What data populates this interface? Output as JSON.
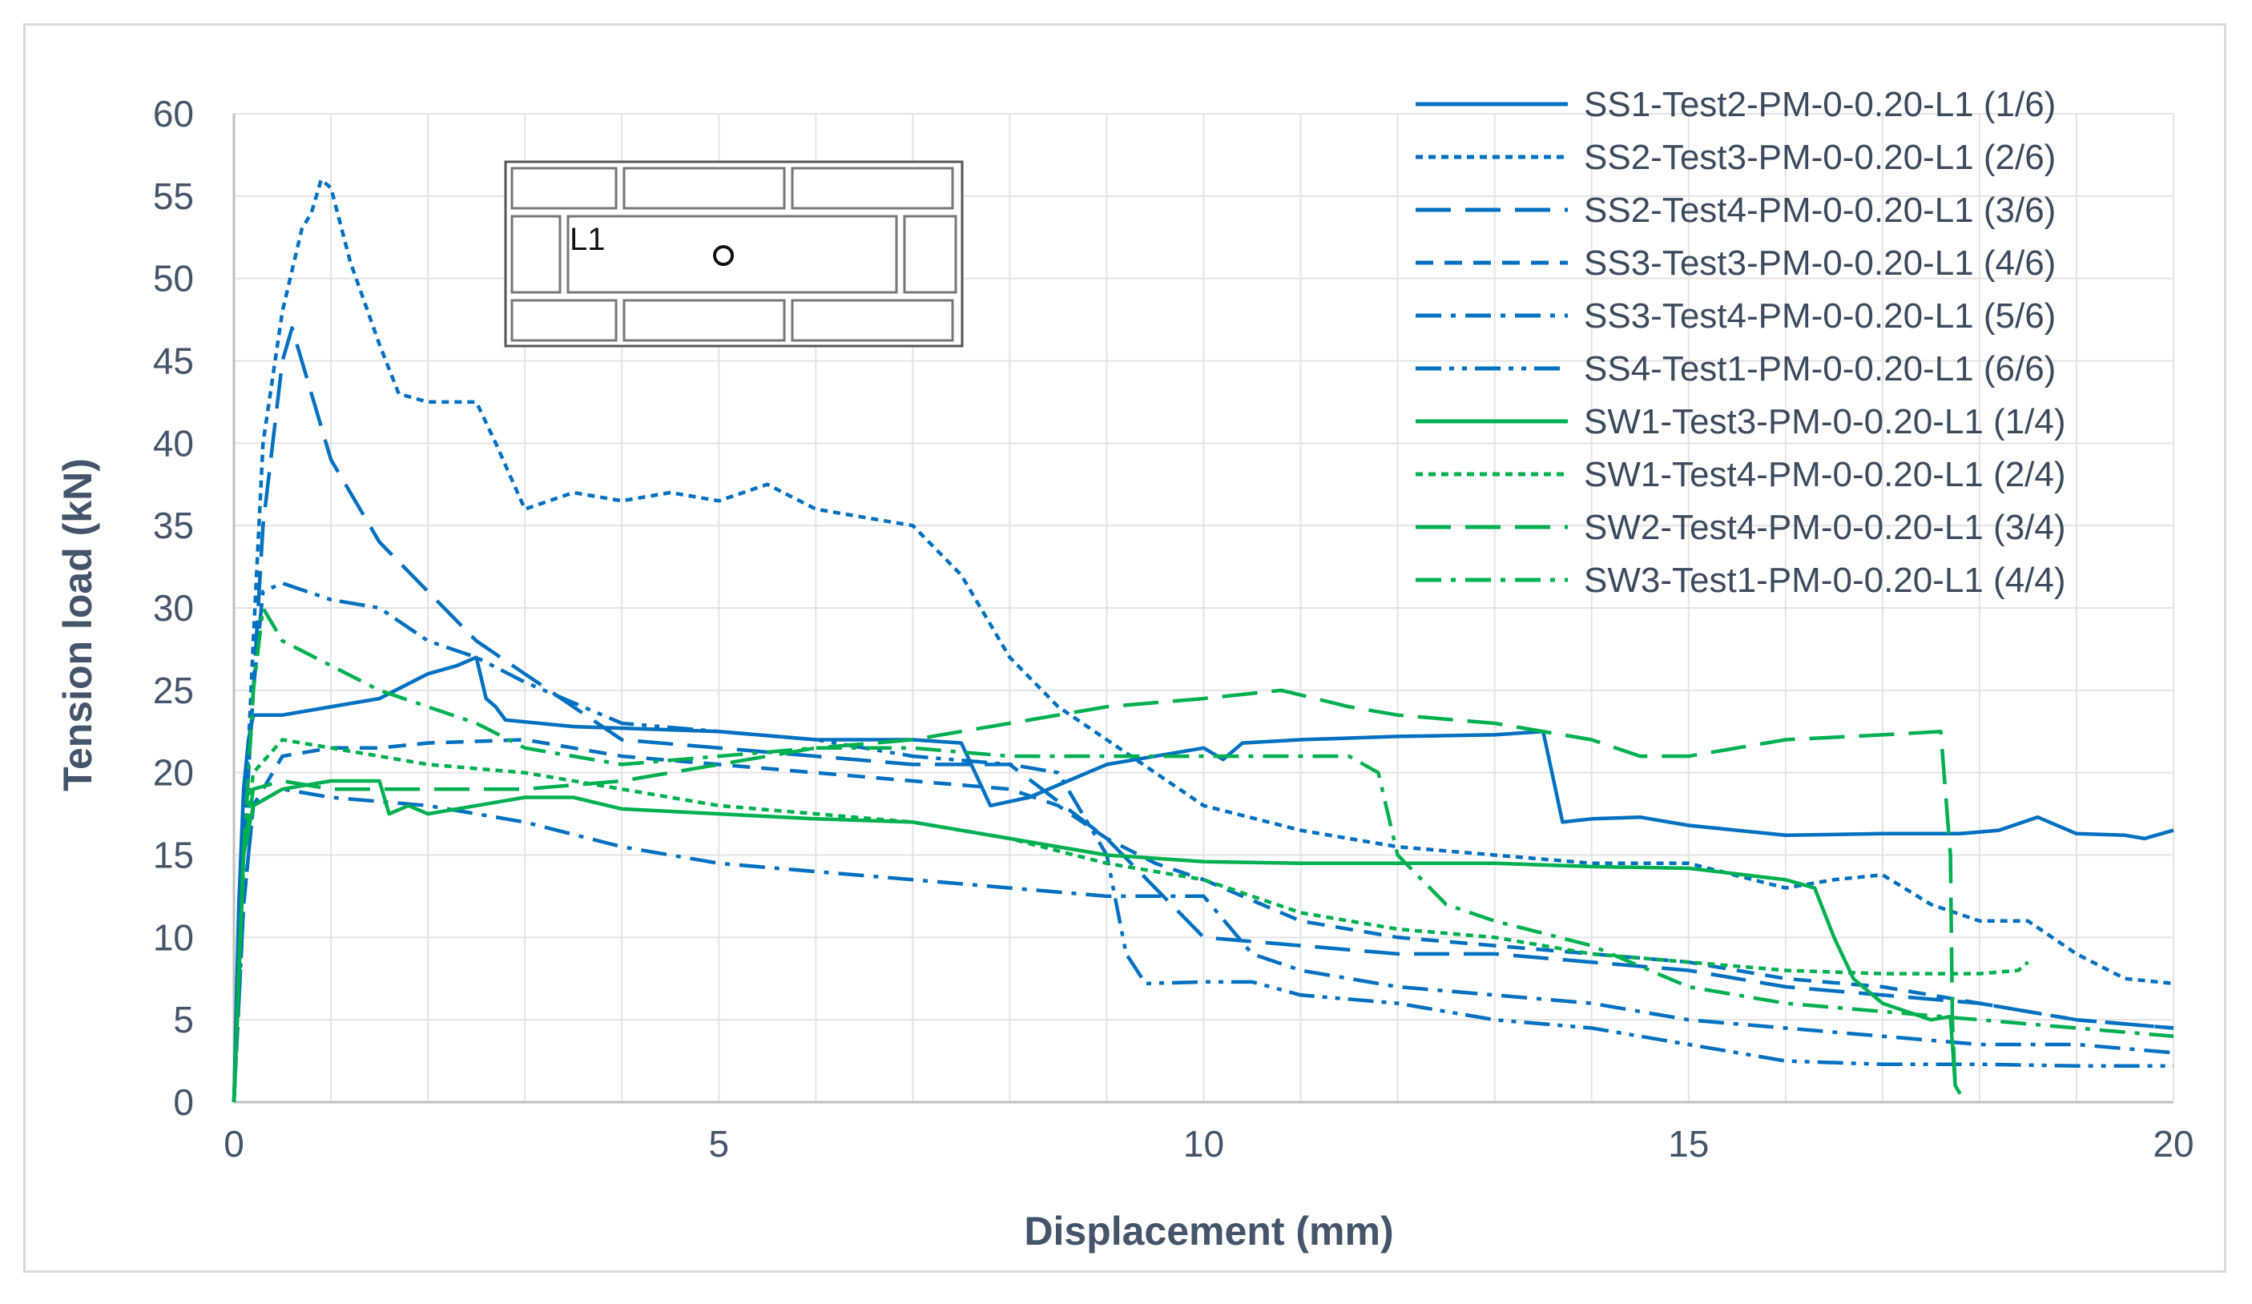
{
  "chart_data": {
    "type": "line",
    "title": "",
    "xlabel": "Displacement (mm)",
    "ylabel": "Tension load (kN)",
    "xlim": [
      0,
      20
    ],
    "ylim": [
      0,
      60
    ],
    "xticks": [
      0,
      5,
      10,
      15,
      20
    ],
    "yticks": [
      0,
      5,
      10,
      15,
      20,
      25,
      30,
      35,
      40,
      45,
      50,
      55,
      60
    ],
    "grid": true,
    "legend_position": "top-right",
    "inset": {
      "label": "L1"
    },
    "series": [
      {
        "name": "SS1-Test2-PM-0-0.20-L1 (1/6)",
        "color": "#0070c0",
        "dash": "solid",
        "points": [
          [
            0,
            0
          ],
          [
            0.05,
            12
          ],
          [
            0.1,
            19
          ],
          [
            0.15,
            22
          ],
          [
            0.2,
            23.5
          ],
          [
            0.5,
            23.5
          ],
          [
            1,
            24
          ],
          [
            1.5,
            24.5
          ],
          [
            2,
            26
          ],
          [
            2.3,
            26.5
          ],
          [
            2.5,
            27
          ],
          [
            2.6,
            24.5
          ],
          [
            2.7,
            24
          ],
          [
            2.8,
            23.2
          ],
          [
            3.5,
            22.8
          ],
          [
            5,
            22.5
          ],
          [
            6,
            22
          ],
          [
            7,
            22
          ],
          [
            7.5,
            21.8
          ],
          [
            7.8,
            18
          ],
          [
            8.2,
            18.5
          ],
          [
            9,
            20.5
          ],
          [
            10,
            21.5
          ],
          [
            10.2,
            20.8
          ],
          [
            10.4,
            21.8
          ],
          [
            11,
            22
          ],
          [
            12,
            22.2
          ],
          [
            13,
            22.3
          ],
          [
            13.5,
            22.5
          ],
          [
            13.7,
            17
          ],
          [
            14,
            17.2
          ],
          [
            14.5,
            17.3
          ],
          [
            15,
            16.8
          ],
          [
            16,
            16.2
          ],
          [
            17,
            16.3
          ],
          [
            17.8,
            16.3
          ],
          [
            18.2,
            16.5
          ],
          [
            18.6,
            17.3
          ],
          [
            19,
            16.3
          ],
          [
            19.5,
            16.2
          ],
          [
            19.7,
            16
          ],
          [
            20,
            16.5
          ]
        ]
      },
      {
        "name": "SS2-Test3-PM-0-0.20-L1 (2/6)",
        "color": "#0070c0",
        "dash": "dot",
        "points": [
          [
            0,
            0
          ],
          [
            0.1,
            15
          ],
          [
            0.2,
            28
          ],
          [
            0.3,
            40
          ],
          [
            0.5,
            48
          ],
          [
            0.7,
            53
          ],
          [
            0.8,
            54
          ],
          [
            0.9,
            56
          ],
          [
            1,
            55.5
          ],
          [
            1.2,
            51
          ],
          [
            1.5,
            46
          ],
          [
            1.7,
            43
          ],
          [
            2,
            42.5
          ],
          [
            2.5,
            42.5
          ],
          [
            2.7,
            40
          ],
          [
            3,
            36
          ],
          [
            3.5,
            37
          ],
          [
            4,
            36.5
          ],
          [
            4.5,
            37
          ],
          [
            5,
            36.5
          ],
          [
            5.5,
            37.5
          ],
          [
            6,
            36
          ],
          [
            7,
            35
          ],
          [
            7.5,
            32
          ],
          [
            8,
            27
          ],
          [
            8.5,
            24
          ],
          [
            9,
            22
          ],
          [
            9.5,
            20
          ],
          [
            10,
            18
          ],
          [
            11,
            16.5
          ],
          [
            12,
            15.5
          ],
          [
            13,
            15
          ],
          [
            14,
            14.5
          ],
          [
            15,
            14.5
          ],
          [
            16,
            13
          ],
          [
            16.5,
            13.5
          ],
          [
            17,
            13.8
          ],
          [
            17.5,
            12
          ],
          [
            18,
            11
          ],
          [
            18.5,
            11
          ],
          [
            19,
            9
          ],
          [
            19.5,
            7.5
          ],
          [
            20,
            7.2
          ]
        ]
      },
      {
        "name": "SS2-Test4-PM-0-0.20-L1 (3/6)",
        "color": "#0070c0",
        "dash": "long-dash",
        "points": [
          [
            0,
            0
          ],
          [
            0.1,
            15
          ],
          [
            0.3,
            35
          ],
          [
            0.5,
            45
          ],
          [
            0.6,
            47
          ],
          [
            0.8,
            43
          ],
          [
            1,
            39
          ],
          [
            1.5,
            34
          ],
          [
            2,
            31
          ],
          [
            2.5,
            28
          ],
          [
            3,
            26
          ],
          [
            3.5,
            24
          ],
          [
            4,
            22
          ],
          [
            5,
            21.5
          ],
          [
            6,
            21
          ],
          [
            7,
            20.5
          ],
          [
            8,
            20.5
          ],
          [
            9,
            16
          ],
          [
            10,
            10
          ],
          [
            11,
            9.5
          ],
          [
            12,
            9
          ],
          [
            13,
            9
          ],
          [
            14,
            8.5
          ],
          [
            15,
            8
          ],
          [
            16,
            7
          ],
          [
            17,
            6.5
          ],
          [
            18,
            6
          ],
          [
            19,
            5
          ],
          [
            20,
            4.5
          ]
        ]
      },
      {
        "name": "SS3-Test3-PM-0-0.20-L1 (4/6)",
        "color": "#0070c0",
        "dash": "dash",
        "points": [
          [
            0,
            0
          ],
          [
            0.1,
            12
          ],
          [
            0.2,
            18
          ],
          [
            0.5,
            21
          ],
          [
            1,
            21.5
          ],
          [
            1.5,
            21.5
          ],
          [
            2,
            21.8
          ],
          [
            3,
            22
          ],
          [
            4,
            21
          ],
          [
            5,
            20.5
          ],
          [
            6,
            20
          ],
          [
            7,
            19.5
          ],
          [
            8,
            19
          ],
          [
            8.5,
            18
          ],
          [
            9,
            16
          ],
          [
            9.5,
            14.5
          ],
          [
            10,
            13.5
          ],
          [
            11,
            11
          ],
          [
            12,
            10
          ],
          [
            13,
            9.5
          ],
          [
            14,
            9
          ],
          [
            15,
            8.5
          ],
          [
            16,
            7.5
          ],
          [
            17,
            7
          ],
          [
            18,
            6
          ],
          [
            19,
            5
          ],
          [
            20,
            4.5
          ]
        ]
      },
      {
        "name": "SS3-Test4-PM-0-0.20-L1 (5/6)",
        "color": "#0070c0",
        "dash": "dash-dot",
        "points": [
          [
            0,
            0
          ],
          [
            0.1,
            12
          ],
          [
            0.2,
            18
          ],
          [
            0.5,
            19
          ],
          [
            1,
            18.5
          ],
          [
            2,
            18
          ],
          [
            3,
            17
          ],
          [
            4,
            15.5
          ],
          [
            5,
            14.5
          ],
          [
            6,
            14
          ],
          [
            7,
            13.5
          ],
          [
            8,
            13
          ],
          [
            9,
            12.5
          ],
          [
            10,
            12.5
          ],
          [
            10.5,
            9
          ],
          [
            11,
            8
          ],
          [
            12,
            7
          ],
          [
            13,
            6.5
          ],
          [
            14,
            6
          ],
          [
            15,
            5
          ],
          [
            16,
            4.5
          ],
          [
            17,
            4
          ],
          [
            18,
            3.5
          ],
          [
            19,
            3.5
          ],
          [
            20,
            3
          ]
        ]
      },
      {
        "name": "SS4-Test1-PM-0-0.20-L1 (6/6)",
        "color": "#0070c0",
        "dash": "dash-dot-dot",
        "points": [
          [
            0,
            0
          ],
          [
            0.1,
            15
          ],
          [
            0.2,
            25
          ],
          [
            0.3,
            31
          ],
          [
            0.5,
            31.5
          ],
          [
            1,
            30.5
          ],
          [
            1.5,
            30
          ],
          [
            2,
            28
          ],
          [
            2.5,
            27
          ],
          [
            3,
            25.5
          ],
          [
            4,
            23
          ],
          [
            5,
            22.5
          ],
          [
            6,
            22
          ],
          [
            7,
            21
          ],
          [
            8,
            20.5
          ],
          [
            8.5,
            20
          ],
          [
            9,
            15
          ],
          [
            9.2,
            9
          ],
          [
            9.4,
            7.2
          ],
          [
            10,
            7.3
          ],
          [
            10.5,
            7.3
          ],
          [
            11,
            6.5
          ],
          [
            12,
            6
          ],
          [
            13,
            5
          ],
          [
            14,
            4.5
          ],
          [
            15,
            3.5
          ],
          [
            16,
            2.5
          ],
          [
            17,
            2.3
          ],
          [
            18,
            2.3
          ],
          [
            19,
            2.2
          ],
          [
            20,
            2.2
          ]
        ]
      },
      {
        "name": "SW1-Test3-PM-0-0.20-L1 (1/4)",
        "color": "#00b050",
        "dash": "solid",
        "points": [
          [
            0,
            0
          ],
          [
            0.05,
            8
          ],
          [
            0.1,
            15
          ],
          [
            0.2,
            18
          ],
          [
            0.5,
            19
          ],
          [
            1,
            19.5
          ],
          [
            1.5,
            19.5
          ],
          [
            1.6,
            17.5
          ],
          [
            1.8,
            18
          ],
          [
            2,
            17.5
          ],
          [
            2.5,
            18
          ],
          [
            3,
            18.5
          ],
          [
            3.5,
            18.5
          ],
          [
            4,
            17.8
          ],
          [
            5,
            17.5
          ],
          [
            6,
            17.2
          ],
          [
            7,
            17
          ],
          [
            8,
            16
          ],
          [
            9,
            15
          ],
          [
            10,
            14.6
          ],
          [
            11,
            14.5
          ],
          [
            12,
            14.5
          ],
          [
            13,
            14.5
          ],
          [
            14,
            14.3
          ],
          [
            15,
            14.2
          ],
          [
            16,
            13.5
          ],
          [
            16.3,
            13
          ],
          [
            16.5,
            10
          ],
          [
            16.7,
            7.5
          ],
          [
            17,
            6
          ],
          [
            17.5,
            5
          ],
          [
            17.7,
            5.2
          ],
          [
            17.75,
            1
          ],
          [
            17.8,
            0.5
          ]
        ]
      },
      {
        "name": "SW1-Test4-PM-0-0.20-L1 (2/4)",
        "color": "#00b050",
        "dash": "dot",
        "points": [
          [
            0,
            0
          ],
          [
            0.1,
            15
          ],
          [
            0.2,
            20
          ],
          [
            0.5,
            22
          ],
          [
            1,
            21.5
          ],
          [
            1.5,
            21
          ],
          [
            2,
            20.5
          ],
          [
            3,
            20
          ],
          [
            4,
            19
          ],
          [
            5,
            18
          ],
          [
            6,
            17.5
          ],
          [
            7,
            17
          ],
          [
            8,
            16
          ],
          [
            9,
            14.5
          ],
          [
            10,
            13.5
          ],
          [
            11,
            11.5
          ],
          [
            12,
            10.5
          ],
          [
            13,
            10
          ],
          [
            14,
            9
          ],
          [
            15,
            8.5
          ],
          [
            16,
            8
          ],
          [
            17,
            7.8
          ],
          [
            18,
            7.8
          ],
          [
            18.4,
            8
          ],
          [
            18.5,
            8.5
          ]
        ]
      },
      {
        "name": "SW2-Test4-PM-0-0.20-L1 (3/4)",
        "color": "#00b050",
        "dash": "long-dash",
        "points": [
          [
            0,
            0
          ],
          [
            0.1,
            15
          ],
          [
            0.2,
            19
          ],
          [
            0.5,
            19.5
          ],
          [
            1,
            19
          ],
          [
            2,
            19
          ],
          [
            3,
            19
          ],
          [
            4,
            19.5
          ],
          [
            5,
            20.5
          ],
          [
            6,
            21.5
          ],
          [
            7,
            22
          ],
          [
            8,
            23
          ],
          [
            9,
            24
          ],
          [
            10,
            24.5
          ],
          [
            10.8,
            25
          ],
          [
            11.5,
            24
          ],
          [
            12,
            23.5
          ],
          [
            13,
            23
          ],
          [
            14,
            22
          ],
          [
            14.5,
            21
          ],
          [
            15,
            21
          ],
          [
            16,
            22
          ],
          [
            17,
            22.3
          ],
          [
            17.6,
            22.5
          ],
          [
            17.7,
            15
          ],
          [
            17.72,
            5
          ],
          [
            17.75,
            1
          ]
        ]
      },
      {
        "name": "SW3-Test1-PM-0-0.20-L1 (4/4)",
        "color": "#00b050",
        "dash": "dash-dot",
        "points": [
          [
            0,
            0
          ],
          [
            0.1,
            15
          ],
          [
            0.2,
            25
          ],
          [
            0.3,
            30
          ],
          [
            0.5,
            28
          ],
          [
            1,
            26.5
          ],
          [
            1.5,
            25
          ],
          [
            2,
            24
          ],
          [
            2.5,
            23
          ],
          [
            3,
            21.5
          ],
          [
            4,
            20.5
          ],
          [
            5,
            21
          ],
          [
            6,
            21.5
          ],
          [
            7,
            21.5
          ],
          [
            8,
            21
          ],
          [
            9,
            21
          ],
          [
            10,
            21
          ],
          [
            11,
            21
          ],
          [
            11.5,
            21
          ],
          [
            11.8,
            20
          ],
          [
            12,
            15
          ],
          [
            12.5,
            12
          ],
          [
            13,
            11
          ],
          [
            14,
            9.5
          ],
          [
            15,
            7
          ],
          [
            16,
            6
          ],
          [
            17,
            5.5
          ],
          [
            18,
            5
          ],
          [
            19,
            4.5
          ],
          [
            20,
            4
          ]
        ]
      }
    ]
  }
}
